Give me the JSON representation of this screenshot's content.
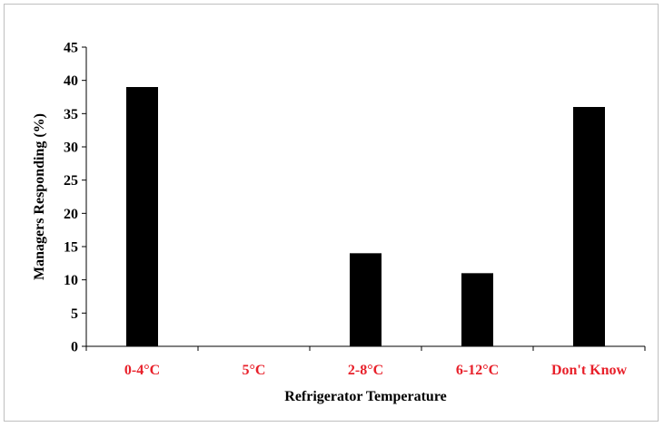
{
  "chart_data": {
    "type": "bar",
    "categories": [
      "0-4°C",
      "5°C",
      "2-8°C",
      "6-12°C",
      "Don't Know"
    ],
    "values": [
      39,
      0,
      14,
      11,
      36
    ],
    "title": "",
    "xlabel": "Refrigerator Temperature",
    "ylabel": "Managers Responding (%)",
    "ylim": [
      0,
      45
    ],
    "yticks": [
      0,
      5,
      10,
      15,
      20,
      25,
      30,
      35,
      40,
      45
    ],
    "grid": false,
    "legend": "none",
    "colors": {
      "bar": "#000000",
      "category_label": "#e8202a",
      "axis": "#000000"
    }
  }
}
